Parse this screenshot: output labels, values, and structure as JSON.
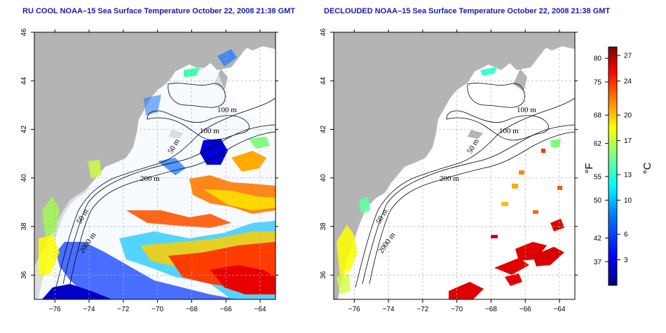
{
  "left_panel": {
    "title": "RU COOL NOAA–15 Sea Surface Temperature October 22, 2008 21:38 GMT",
    "contour_labels": [
      "100 m",
      "100 m",
      "50 m",
      "200 m",
      "50 m",
      "2000 m"
    ]
  },
  "right_panel": {
    "title": "DECLOUDED NOAA–15 Sea Surface Temperature October 22, 2008 21:38 GMT",
    "contour_labels": [
      "100 m",
      "100 m",
      "50 m",
      "200 m",
      "50 m",
      "2000 m"
    ]
  },
  "axes": {
    "lon_ticks": [
      "−76",
      "−74",
      "−72",
      "−70",
      "−68",
      "−66",
      "−64"
    ],
    "lon_values": [
      -76,
      -74,
      -72,
      -70,
      -68,
      -66,
      -64
    ],
    "lat_ticks": [
      "46",
      "44",
      "42",
      "40",
      "38",
      "36"
    ],
    "lat_values": [
      46,
      44,
      42,
      40,
      38,
      36
    ],
    "lon_range": [
      -77.2,
      -63.1
    ],
    "lat_range": [
      35.0,
      46.0
    ]
  },
  "colorbar": {
    "fahrenheit_ticks": [
      "80",
      "75",
      "68",
      "62",
      "55",
      "50",
      "42",
      "37"
    ],
    "fahrenheit_values": [
      80,
      75,
      68,
      62,
      55,
      50,
      42,
      37
    ],
    "celsius_ticks": [
      "27",
      "24",
      "20",
      "17",
      "13",
      "10",
      "6",
      "3"
    ],
    "celsius_values": [
      27,
      24,
      20,
      17,
      13,
      10,
      6,
      3
    ],
    "range_c": [
      0,
      28
    ],
    "unit_f": "°F",
    "unit_c": "°C",
    "colors": [
      "#00007f",
      "#0000ff",
      "#007fff",
      "#00ffff",
      "#7fff7f",
      "#ffff00",
      "#ff7f00",
      "#ff0000",
      "#7f0000"
    ]
  },
  "colors": {
    "land": "#b4b4b4",
    "water_frame": "#ffffff",
    "grid": "#b0b0b0",
    "contour": "#000000"
  }
}
